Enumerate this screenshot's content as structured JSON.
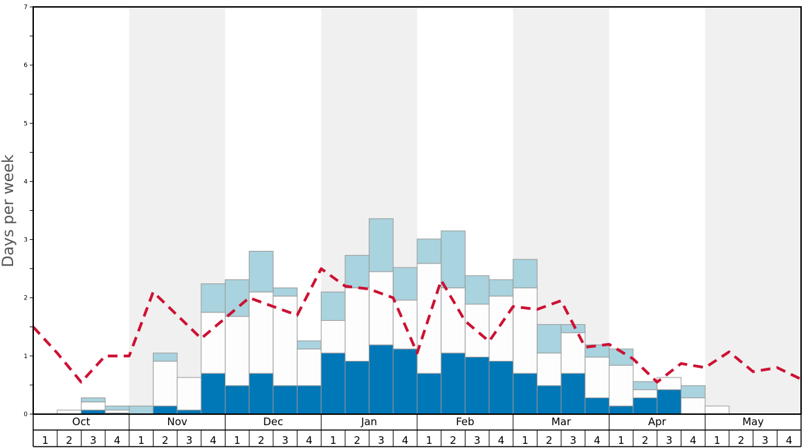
{
  "chart_data": {
    "type": "bar",
    "subtype": "stacked",
    "ylabel": "Days per week",
    "ylim": [
      0,
      7
    ],
    "yticks": [
      0,
      1,
      2,
      3,
      4,
      5,
      6,
      7
    ],
    "months": [
      "Oct",
      "Nov",
      "Dec",
      "Jan",
      "Feb",
      "Mar",
      "Apr",
      "May"
    ],
    "week_labels": [
      "1",
      "2",
      "3",
      "4"
    ],
    "colors": {
      "bottom": "#0077b6",
      "middle": "#fdfdfd",
      "top": "#a9d3de",
      "line": "#cc1133",
      "shade": "#f0f0f0",
      "bar_edge": "#999999"
    },
    "series": [
      {
        "name": "bottom",
        "values": [
          0,
          0,
          0.07,
          0.02,
          0,
          0.14,
          0.07,
          0.7,
          0.49,
          0.7,
          0.49,
          0.49,
          1.05,
          0.91,
          1.19,
          1.12,
          0.7,
          1.05,
          0.98,
          0.91,
          0.7,
          0.49,
          0.7,
          0.28,
          0.14,
          0.28,
          0.42,
          0,
          0,
          0,
          0,
          0
        ]
      },
      {
        "name": "middle",
        "values": [
          0,
          0.07,
          0.14,
          0.05,
          0,
          0.77,
          0.56,
          1.05,
          1.19,
          1.4,
          1.54,
          0.63,
          0.56,
          1.26,
          1.26,
          0.84,
          1.89,
          1.12,
          0.91,
          1.12,
          1.47,
          0.56,
          0.7,
          0.7,
          0.7,
          0.14,
          0.21,
          0.28,
          0.14,
          0,
          0,
          0
        ]
      },
      {
        "name": "top",
        "values": [
          0,
          0,
          0.07,
          0.07,
          0.14,
          0.14,
          0,
          0.49,
          0.63,
          0.7,
          0.14,
          0.14,
          0.49,
          0.56,
          0.91,
          0.56,
          0.42,
          0.98,
          0.49,
          0.28,
          0.49,
          0.49,
          0.14,
          0.21,
          0.28,
          0.14,
          0,
          0.21,
          0,
          0,
          0,
          0
        ]
      }
    ],
    "line": {
      "name": "average",
      "style": "dashed",
      "values": [
        1.5,
        1.05,
        0.55,
        1.0,
        1.0,
        2.1,
        1.7,
        1.3,
        1.65,
        2.0,
        1.85,
        1.7,
        2.5,
        2.2,
        2.15,
        2.0,
        1.05,
        2.3,
        1.6,
        1.25,
        1.85,
        1.8,
        1.95,
        1.15,
        1.2,
        0.95,
        0.55,
        0.87,
        0.8,
        1.07,
        0.73,
        0.8,
        0.6
      ]
    }
  }
}
